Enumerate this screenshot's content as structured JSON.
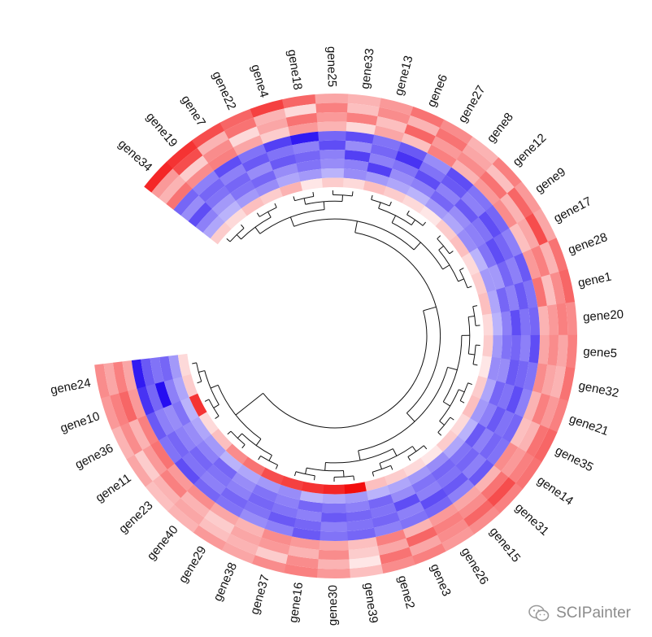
{
  "chart_data": {
    "type": "heatmap",
    "layout": "circular",
    "title": "",
    "genes": [
      "gene34",
      "gene19",
      "gene7",
      "gene22",
      "gene4",
      "gene18",
      "gene25",
      "gene33",
      "gene13",
      "gene6",
      "gene27",
      "gene8",
      "gene12",
      "gene9",
      "gene17",
      "gene28",
      "gene1",
      "gene20",
      "gene5",
      "gene32",
      "gene21",
      "gene35",
      "gene14",
      "gene31",
      "gene15",
      "gene26",
      "gene3",
      "gene2",
      "gene39",
      "gene30",
      "gene16",
      "gene37",
      "gene38",
      "gene29",
      "gene40",
      "gene23",
      "gene11",
      "gene36",
      "gene10",
      "gene24"
    ],
    "tracks": [
      {
        "group": "outer",
        "values": [
          0.85,
          0.8,
          0.7,
          0.6,
          0.75,
          0.6,
          0.35,
          0.3,
          0.4,
          0.55,
          0.45,
          0.3,
          0.5,
          0.4,
          0.35,
          0.55,
          0.6,
          0.45,
          0.5,
          0.55,
          0.5,
          0.6,
          0.55,
          0.5,
          0.45,
          0.4,
          0.5,
          0.45,
          0.25,
          0.4,
          0.5,
          0.45,
          0.35,
          0.4,
          0.3,
          0.25,
          0.35,
          0.3,
          0.4,
          0.45
        ]
      },
      {
        "group": "outer",
        "values": [
          0.4,
          0.7,
          0.3,
          0.55,
          0.3,
          0.15,
          0.5,
          0.25,
          0.45,
          0.3,
          0.55,
          0.35,
          0.25,
          0.6,
          0.7,
          0.3,
          0.45,
          0.5,
          0.35,
          0.3,
          0.4,
          0.55,
          0.5,
          0.7,
          0.6,
          0.45,
          0.35,
          0.55,
          0.1,
          0.3,
          0.45,
          0.2,
          0.3,
          0.25,
          0.35,
          0.3,
          0.2,
          0.45,
          0.5,
          0.35
        ]
      },
      {
        "group": "outer",
        "values": [
          0.3,
          0.2,
          0.45,
          0.15,
          0.35,
          0.55,
          0.4,
          0.5,
          0.25,
          0.6,
          0.4,
          0.45,
          0.55,
          0.3,
          0.35,
          0.5,
          0.25,
          0.4,
          0.45,
          0.35,
          0.5,
          0.3,
          0.4,
          0.55,
          0.45,
          0.5,
          0.6,
          0.35,
          0.2,
          0.45,
          0.3,
          0.4,
          0.35,
          0.2,
          0.3,
          0.5,
          0.4,
          0.3,
          0.6,
          0.5
        ]
      },
      {
        "group": "outer",
        "values": [
          0.55,
          0.45,
          0.5,
          0.35,
          0.2,
          0.4,
          0.3,
          0.15,
          0.35,
          0.25,
          0.5,
          0.3,
          0.4,
          0.45,
          0.25,
          0.4,
          0.55,
          0.3,
          0.35,
          0.45,
          0.3,
          0.25,
          0.45,
          0.3,
          0.35,
          0.4,
          0.3,
          0.5,
          0.25,
          0.35,
          0.4,
          0.45,
          0.3,
          0.35,
          0.45,
          0.4,
          0.55,
          0.5,
          0.4,
          0.35
        ]
      },
      {
        "group": "inner",
        "values": [
          0.6,
          0.5,
          0.7,
          0.55,
          0.75,
          0.9,
          0.6,
          0.7,
          0.55,
          0.65,
          0.45,
          0.7,
          0.55,
          0.6,
          0.5,
          0.65,
          0.55,
          0.6,
          0.7,
          0.55,
          0.5,
          0.6,
          0.55,
          0.65,
          0.5,
          0.6,
          0.55,
          0.5,
          0.6,
          0.55,
          0.65,
          0.5,
          0.45,
          0.55,
          0.6,
          0.7,
          0.55,
          0.65,
          0.8,
          0.9
        ]
      },
      {
        "group": "inner",
        "values": [
          0.45,
          0.6,
          0.5,
          0.65,
          0.55,
          0.5,
          0.7,
          0.45,
          0.6,
          0.8,
          0.55,
          0.65,
          0.5,
          0.7,
          0.6,
          0.5,
          0.65,
          0.55,
          0.5,
          0.6,
          0.7,
          0.55,
          0.6,
          0.5,
          0.65,
          0.7,
          0.5,
          0.6,
          0.55,
          0.5,
          0.6,
          0.65,
          0.55,
          0.6,
          0.5,
          0.55,
          0.6,
          0.5,
          0.6,
          0.65
        ]
      },
      {
        "group": "inner",
        "values": [
          0.7,
          0.55,
          0.6,
          0.45,
          0.65,
          0.6,
          0.5,
          0.75,
          0.5,
          0.55,
          0.7,
          0.5,
          0.65,
          0.55,
          0.7,
          0.6,
          0.5,
          0.7,
          0.6,
          0.65,
          0.55,
          0.65,
          0.5,
          0.6,
          0.55,
          0.5,
          0.7,
          0.55,
          0.6,
          0.65,
          0.5,
          0.55,
          0.6,
          0.5,
          0.55,
          0.6,
          0.5,
          0.45,
          0.95,
          0.55
        ]
      },
      {
        "group": "inner",
        "values": [
          0.5,
          0.4,
          0.55,
          0.6,
          0.45,
          0.55,
          0.45,
          0.5,
          0.75,
          0.45,
          0.5,
          0.6,
          0.45,
          0.5,
          0.55,
          0.4,
          0.6,
          0.5,
          0.55,
          0.45,
          0.6,
          0.5,
          0.65,
          0.55,
          0.6,
          0.55,
          0.45,
          0.6,
          0.5,
          0.55,
          0.6,
          0.5,
          0.55,
          0.45,
          0.6,
          0.5,
          0.45,
          0.55,
          0.5,
          0.6
        ]
      },
      {
        "group": "inner",
        "values": [
          0.35,
          0.3,
          0.4,
          0.45,
          0.35,
          0.4,
          0.3,
          0.45,
          0.4,
          0.35,
          0.3,
          0.4,
          0.35,
          0.45,
          0.3,
          0.4,
          0.35,
          0.3,
          0.4,
          0.45,
          0.35,
          0.4,
          0.3,
          0.35,
          0.45,
          0.4,
          0.35,
          0.3,
          0.4,
          0.35,
          0.3,
          0.45,
          0.4,
          0.35,
          0.3,
          0.4,
          0.35,
          0.3,
          0.35,
          0.4
        ]
      },
      {
        "group": "outer",
        "values": [
          0.2,
          0.15,
          0.25,
          0.2,
          0.3,
          0.1,
          0.2,
          0.15,
          0.25,
          0.2,
          0.15,
          0.1,
          0.2,
          0.25,
          0.15,
          0.2,
          0.25,
          0.15,
          0.2,
          0.1,
          0.2,
          0.25,
          0.15,
          0.2,
          0.1,
          0.15,
          0.2,
          0.25,
          0.95,
          0.85,
          0.8,
          0.75,
          0.7,
          0.55,
          0.45,
          0.25,
          0.15,
          0.8,
          0.2,
          0.15
        ]
      }
    ],
    "colors": {
      "high": "#f20000",
      "mid": "#ffffff",
      "low": "#1a00f0"
    },
    "dendrogram": true,
    "watermark": "SCIPainter"
  }
}
